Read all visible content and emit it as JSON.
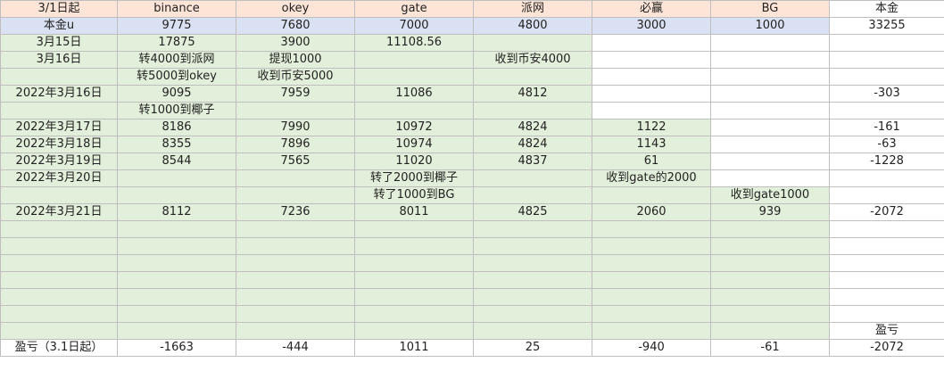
{
  "columns": [
    {
      "name": "c0",
      "width": 131
    },
    {
      "name": "c1",
      "width": 133
    },
    {
      "name": "c2",
      "width": 133
    },
    {
      "name": "c3",
      "width": 133
    },
    {
      "name": "c4",
      "width": 133
    },
    {
      "name": "c5",
      "width": 133
    },
    {
      "name": "c6",
      "width": 133
    },
    {
      "name": "c7",
      "width": 129
    }
  ],
  "rows": [
    [
      [
        "3/1日起",
        "h"
      ],
      [
        "binance",
        "h"
      ],
      [
        "okey",
        "h"
      ],
      [
        "gate",
        "h"
      ],
      [
        "派网",
        "h"
      ],
      [
        "必赢",
        "h"
      ],
      [
        "BG",
        "h"
      ],
      [
        "本金",
        "w"
      ]
    ],
    [
      [
        "本金u",
        "b"
      ],
      [
        "9775",
        "b"
      ],
      [
        "7680",
        "b"
      ],
      [
        "7000",
        "b"
      ],
      [
        "4800",
        "b"
      ],
      [
        "3000",
        "b"
      ],
      [
        "1000",
        "b"
      ],
      [
        "33255",
        "w"
      ]
    ],
    [
      [
        "3月15日",
        "g"
      ],
      [
        "17875",
        "g"
      ],
      [
        "3900",
        "g"
      ],
      [
        "11108.56",
        "g"
      ],
      [
        "",
        "g"
      ],
      [
        "",
        "w"
      ],
      [
        "",
        "w"
      ],
      [
        "",
        "w"
      ]
    ],
    [
      [
        "3月16日",
        "g"
      ],
      [
        "转4000到派网",
        "g"
      ],
      [
        "提现1000",
        "g"
      ],
      [
        "",
        "g"
      ],
      [
        "收到币安4000",
        "g"
      ],
      [
        "",
        "w"
      ],
      [
        "",
        "w"
      ],
      [
        "",
        "w"
      ]
    ],
    [
      [
        "",
        "g"
      ],
      [
        "转5000到okey",
        "g"
      ],
      [
        "收到币安5000",
        "g"
      ],
      [
        "",
        "g"
      ],
      [
        "",
        "g"
      ],
      [
        "",
        "w"
      ],
      [
        "",
        "w"
      ],
      [
        "",
        "w"
      ]
    ],
    [
      [
        "2022年3月16日",
        "g"
      ],
      [
        "9095",
        "g"
      ],
      [
        "7959",
        "g"
      ],
      [
        "11086",
        "g"
      ],
      [
        "4812",
        "g"
      ],
      [
        "",
        "w"
      ],
      [
        "",
        "w"
      ],
      [
        "-303",
        "w"
      ]
    ],
    [
      [
        "",
        "g"
      ],
      [
        "转1000到椰子",
        "g"
      ],
      [
        "",
        "g"
      ],
      [
        "",
        "g"
      ],
      [
        "",
        "g"
      ],
      [
        "",
        "w"
      ],
      [
        "",
        "w"
      ],
      [
        "",
        "w"
      ]
    ],
    [
      [
        "2022年3月17日",
        "g"
      ],
      [
        "8186",
        "g"
      ],
      [
        "7990",
        "g"
      ],
      [
        "10972",
        "g"
      ],
      [
        "4824",
        "g"
      ],
      [
        "1122",
        "g"
      ],
      [
        "",
        "w"
      ],
      [
        "-161",
        "w"
      ]
    ],
    [
      [
        "2022年3月18日",
        "g"
      ],
      [
        "8355",
        "g"
      ],
      [
        "7896",
        "g"
      ],
      [
        "10974",
        "g"
      ],
      [
        "4824",
        "g"
      ],
      [
        "1143",
        "g"
      ],
      [
        "",
        "w"
      ],
      [
        "-63",
        "w"
      ]
    ],
    [
      [
        "2022年3月19日",
        "g"
      ],
      [
        "8544",
        "g"
      ],
      [
        "7565",
        "g"
      ],
      [
        "11020",
        "g"
      ],
      [
        "4837",
        "g"
      ],
      [
        "61",
        "g"
      ],
      [
        "",
        "w"
      ],
      [
        "-1228",
        "w"
      ]
    ],
    [
      [
        "2022年3月20日",
        "g"
      ],
      [
        "",
        "g"
      ],
      [
        "",
        "g"
      ],
      [
        "转了2000到椰子",
        "g"
      ],
      [
        "",
        "g"
      ],
      [
        "收到gate的2000",
        "g"
      ],
      [
        "",
        "w"
      ],
      [
        "",
        "w"
      ]
    ],
    [
      [
        "",
        "g"
      ],
      [
        "",
        "g"
      ],
      [
        "",
        "g"
      ],
      [
        "转了1000到BG",
        "g"
      ],
      [
        "",
        "g"
      ],
      [
        "",
        "g"
      ],
      [
        "收到gate1000",
        "g"
      ],
      [
        "",
        "w"
      ]
    ],
    [
      [
        "2022年3月21日",
        "g"
      ],
      [
        "8112",
        "g"
      ],
      [
        "7236",
        "g"
      ],
      [
        "8011",
        "g"
      ],
      [
        "4825",
        "g"
      ],
      [
        "2060",
        "g"
      ],
      [
        "939",
        "g"
      ],
      [
        "-2072",
        "w"
      ]
    ],
    [
      [
        "",
        "g"
      ],
      [
        "",
        "g"
      ],
      [
        "",
        "g"
      ],
      [
        "",
        "g"
      ],
      [
        "",
        "g"
      ],
      [
        "",
        "g"
      ],
      [
        "",
        "g"
      ],
      [
        "",
        "w"
      ]
    ],
    [
      [
        "",
        "g"
      ],
      [
        "",
        "g"
      ],
      [
        "",
        "g"
      ],
      [
        "",
        "g"
      ],
      [
        "",
        "g"
      ],
      [
        "",
        "g"
      ],
      [
        "",
        "g"
      ],
      [
        "",
        "w"
      ]
    ],
    [
      [
        "",
        "g"
      ],
      [
        "",
        "g"
      ],
      [
        "",
        "g"
      ],
      [
        "",
        "g"
      ],
      [
        "",
        "g"
      ],
      [
        "",
        "g"
      ],
      [
        "",
        "g"
      ],
      [
        "",
        "w"
      ]
    ],
    [
      [
        "",
        "g"
      ],
      [
        "",
        "g"
      ],
      [
        "",
        "g"
      ],
      [
        "",
        "g"
      ],
      [
        "",
        "g"
      ],
      [
        "",
        "g"
      ],
      [
        "",
        "g"
      ],
      [
        "",
        "w"
      ]
    ],
    [
      [
        "",
        "g"
      ],
      [
        "",
        "g"
      ],
      [
        "",
        "g"
      ],
      [
        "",
        "g"
      ],
      [
        "",
        "g"
      ],
      [
        "",
        "g"
      ],
      [
        "",
        "g"
      ],
      [
        "",
        "w"
      ]
    ],
    [
      [
        "",
        "g"
      ],
      [
        "",
        "g"
      ],
      [
        "",
        "g"
      ],
      [
        "",
        "g"
      ],
      [
        "",
        "g"
      ],
      [
        "",
        "g"
      ],
      [
        "",
        "g"
      ],
      [
        "",
        "w"
      ]
    ],
    [
      [
        "",
        "g"
      ],
      [
        "",
        "g"
      ],
      [
        "",
        "g"
      ],
      [
        "",
        "g"
      ],
      [
        "",
        "g"
      ],
      [
        "",
        "g"
      ],
      [
        "",
        "g"
      ],
      [
        "盈亏",
        "w"
      ]
    ],
    [
      [
        "盈亏（3.1日起）",
        "w"
      ],
      [
        "-1663",
        "w"
      ],
      [
        "-444",
        "w"
      ],
      [
        "1011",
        "w"
      ],
      [
        "25",
        "w"
      ],
      [
        "-940",
        "w"
      ],
      [
        "-61",
        "w"
      ],
      [
        "-2072",
        "w"
      ]
    ]
  ]
}
